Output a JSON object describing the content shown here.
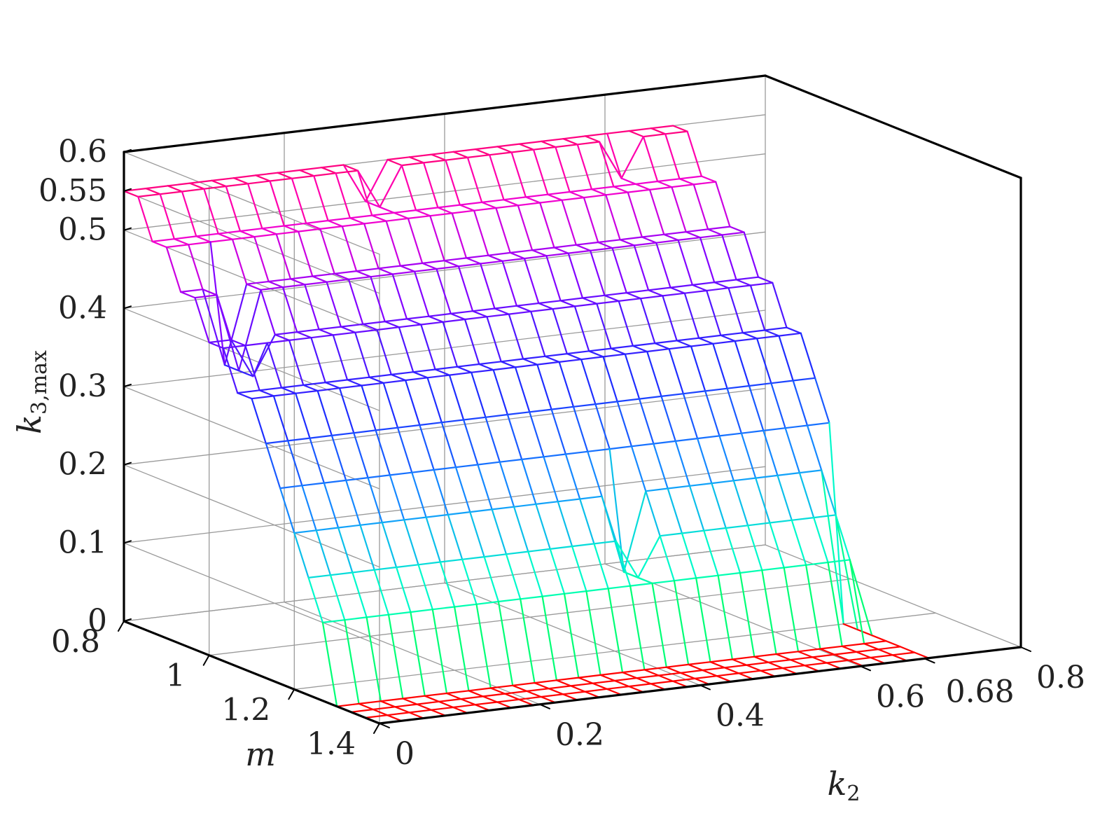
{
  "chart_data": {
    "type": "surface",
    "style": "wireframe mesh colored by height (jet colormap, red at zero)",
    "xlabel": "m",
    "ylabel": "k2",
    "ylabel_parts": {
      "base": "k",
      "sub": "2"
    },
    "zlabel": "k3,max",
    "zlabel_parts": {
      "base": "k",
      "sub": "3,max"
    },
    "xlim": [
      0.8,
      1.4
    ],
    "ylim": [
      0,
      0.8
    ],
    "zlim": [
      0,
      0.6
    ],
    "x_ticks": [
      {
        "value": 0.8,
        "label": "0.8"
      },
      {
        "value": 1.0,
        "label": "1"
      },
      {
        "value": 1.2,
        "label": "1.2"
      },
      {
        "value": 1.4,
        "label": "1.4"
      }
    ],
    "y_ticks": [
      {
        "value": 0,
        "label": "0"
      },
      {
        "value": 0.2,
        "label": "0.2"
      },
      {
        "value": 0.4,
        "label": "0.4"
      },
      {
        "value": 0.6,
        "label": "0.6"
      },
      {
        "value": 0.68,
        "label": "0.68"
      },
      {
        "value": 0.8,
        "label": "0.8"
      }
    ],
    "z_ticks": [
      {
        "value": 0,
        "label": "0"
      },
      {
        "value": 0.1,
        "label": "0.1"
      },
      {
        "value": 0.2,
        "label": "0.2"
      },
      {
        "value": 0.3,
        "label": "0.3"
      },
      {
        "value": 0.4,
        "label": "0.4"
      },
      {
        "value": 0.5,
        "label": "0.5"
      },
      {
        "value": 0.55,
        "label": "0.55"
      },
      {
        "value": 0.6,
        "label": "0.6"
      }
    ],
    "grid": true,
    "m_grid": {
      "start": 0.8,
      "step": 0.0333333,
      "count": 19
    },
    "k2_grid": {
      "start": 0,
      "step": 0.0274,
      "count": 26
    },
    "surface_rows": [
      {
        "m": 0.8,
        "k3max_for_k2_index_0_to_13": 0.55,
        "k3max_for_k2_index_14_to_25": 0.55
      },
      {
        "m": 0.8333,
        "k3max_for_k2_index_0_to_13": 0.55,
        "k3max_for_k2_index_14_to_25": 0.55
      }
    ],
    "steps_by_m": [
      {
        "m": 0.8,
        "k3max": 0.55
      },
      {
        "m": 0.8333,
        "k3max": 0.55
      },
      {
        "m": 0.8667,
        "k3max": 0.5
      },
      {
        "m": 0.9,
        "k3max": 0.5
      },
      {
        "m": 0.9333,
        "k3max": 0.45
      },
      {
        "m": 0.9667,
        "k3max": 0.45
      },
      {
        "m": 1.0,
        "k3max": 0.4
      },
      {
        "m": 1.0333,
        "k3max": 0.4
      },
      {
        "m": 1.0667,
        "k3max": 0.35
      },
      {
        "m": 1.1,
        "k3max": 0.35
      },
      {
        "m": 1.1333,
        "k3max": 0.3
      },
      {
        "m": 1.1667,
        "k3max": 0.25
      },
      {
        "m": 1.2,
        "k3max": 0.2
      },
      {
        "m": 1.2333,
        "k3max": 0.15
      },
      {
        "m": 1.2667,
        "k3max": 0.1
      },
      {
        "m": 1.3,
        "k3max": 0
      },
      {
        "m": 1.3333,
        "k3max": 0
      },
      {
        "m": 1.3667,
        "k3max": 0
      },
      {
        "m": 1.4,
        "k3max": 0
      }
    ],
    "notches": [
      {
        "m_from": 0.8,
        "m_to": 0.8667,
        "k2": 0.3,
        "k3max": 0.5
      },
      {
        "m_from": 0.8333,
        "m_to": 0.9,
        "k2": 0.6,
        "k3max": 0.5
      },
      {
        "m_from": 0.9333,
        "m_to": 1.0,
        "k2": 0.05,
        "k3max": 0.35
      },
      {
        "m_from": 1.2,
        "m_to": 1.2667,
        "k2": 0.41,
        "k3max": 0.1
      }
    ],
    "zero_region": [
      {
        "m_from": 1.2667,
        "k2_from": 0.2,
        "k2_to": 0.3
      },
      {
        "m_from": 1.2,
        "k2_from": 0.68,
        "k2_to": 0.75
      }
    ]
  }
}
